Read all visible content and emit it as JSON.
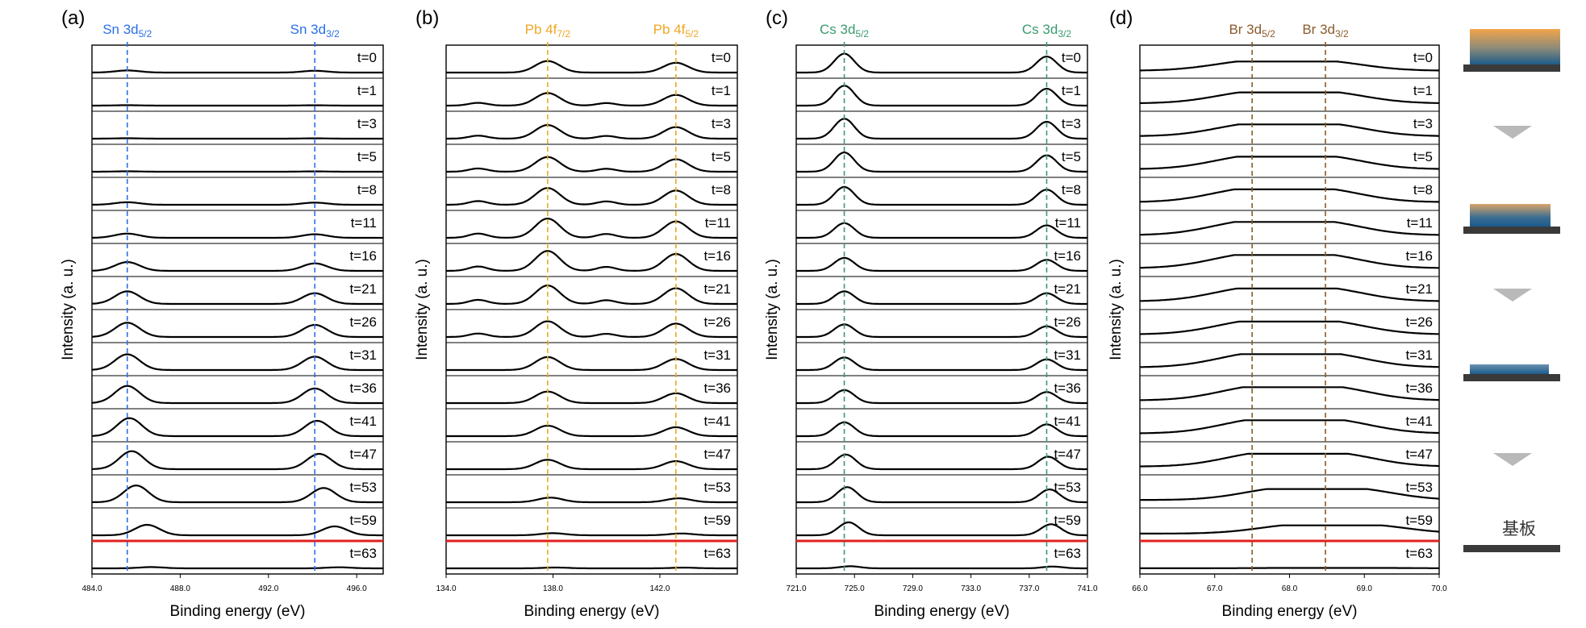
{
  "panels": [
    {
      "label": "(a)",
      "ylabel": "Intensity (a. u.)",
      "xlabel": "Binding energy (eV)",
      "peak_color": "#2b6fe8",
      "peaks": [
        {
          "name": "Sn 3d",
          "sub": "5/2",
          "position": 485.6
        },
        {
          "name": "Sn 3d",
          "sub": "3/2",
          "position": 494.1
        }
      ],
      "xlim": [
        484.0,
        497.2
      ],
      "ticks": [
        "484.0",
        "488.0",
        "492.0",
        "496.0"
      ],
      "tick_values": [
        484.0,
        488.0,
        492.0,
        496.0
      ]
    },
    {
      "label": "(b)",
      "ylabel": "Intensity (a. u.)",
      "xlabel": "Binding energy (eV)",
      "peak_color": "#f0a623",
      "peaks": [
        {
          "name": "Pb 4f",
          "sub": "7/2",
          "position": 137.8
        },
        {
          "name": "Pb 4f",
          "sub": "5/2",
          "position": 142.6
        }
      ],
      "xlim": [
        134.0,
        144.9
      ],
      "ticks": [
        "134.0",
        "138.0",
        "142.0"
      ],
      "tick_values": [
        134.0,
        138.0,
        142.0
      ]
    },
    {
      "label": "(c)",
      "ylabel": "Intensity (a. u.)",
      "xlabel": "Binding energy (eV)",
      "peak_color": "#3a9a6e",
      "peaks": [
        {
          "name": "Cs 3d",
          "sub": "5/2",
          "position": 724.3
        },
        {
          "name": "Cs 3d",
          "sub": "3/2",
          "position": 738.2
        }
      ],
      "xlim": [
        721.0,
        741.0
      ],
      "ticks": [
        "721.0",
        "725.0",
        "729.0",
        "733.0",
        "737.0",
        "741.0"
      ],
      "tick_values": [
        721.0,
        725.0,
        729.0,
        733.0,
        737.0,
        741.0
      ]
    },
    {
      "label": "(d)",
      "ylabel": "Intensity (a. u.)",
      "xlabel": "Binding energy (eV)",
      "peak_color": "#8a5a2b",
      "peaks": [
        {
          "name": "Br 3d",
          "sub": "5/2",
          "position": 67.5
        },
        {
          "name": "Br 3d",
          "sub": "3/2",
          "position": 68.48
        }
      ],
      "xlim": [
        66.0,
        70.0
      ],
      "ticks": [
        "66.0",
        "67.0",
        "68.0",
        "69.0",
        "70.0"
      ],
      "tick_values": [
        66.0,
        67.0,
        68.0,
        69.0,
        70.0
      ]
    }
  ],
  "time_labels": [
    "t=0",
    "t=1",
    "t=3",
    "t=5",
    "t=8",
    "t=11",
    "t=16",
    "t=21",
    "t=26",
    "t=31",
    "t=36",
    "t=41",
    "t=47",
    "t=53",
    "t=59",
    "t=63"
  ],
  "baseline_color": "#e02020",
  "baseline_between": [
    "t=59",
    "t=63"
  ],
  "substrate_label": "基板",
  "chart_data": [
    {
      "type": "line",
      "title": "(a)",
      "xlabel": "Binding energy (eV)",
      "ylabel": "Intensity (a. u.)",
      "xlim": [
        484.0,
        497.2
      ],
      "peak_positions": [
        485.6,
        494.1
      ],
      "series_labels": [
        "t=0",
        "t=1",
        "t=3",
        "t=5",
        "t=8",
        "t=11",
        "t=16",
        "t=21",
        "t=26",
        "t=31",
        "t=36",
        "t=41",
        "t=47",
        "t=53",
        "t=59",
        "t=63"
      ],
      "peak_intensity": [
        0.1,
        0.02,
        0.02,
        0.02,
        0.12,
        0.2,
        0.42,
        0.6,
        0.68,
        0.75,
        0.82,
        0.86,
        0.86,
        0.8,
        0.5,
        0.06
      ],
      "peak_shift": [
        0,
        0,
        0,
        0,
        0,
        0,
        0,
        0,
        0,
        0,
        0,
        0.1,
        0.2,
        0.4,
        0.9,
        1.1
      ]
    },
    {
      "type": "line",
      "title": "(b)",
      "xlabel": "Binding energy (eV)",
      "ylabel": "Intensity (a. u.)",
      "xlim": [
        134.0,
        144.9
      ],
      "peak_positions": [
        137.8,
        142.6
      ],
      "series_labels": [
        "t=0",
        "t=1",
        "t=3",
        "t=5",
        "t=8",
        "t=11",
        "t=16",
        "t=21",
        "t=26",
        "t=31",
        "t=36",
        "t=41",
        "t=47",
        "t=53",
        "t=59",
        "t=63"
      ],
      "peak_intensity": [
        0.55,
        0.6,
        0.65,
        0.7,
        0.8,
        0.92,
        0.95,
        0.88,
        0.75,
        0.62,
        0.55,
        0.5,
        0.45,
        0.22,
        0.1,
        0.04
      ],
      "peak_shift": [
        0,
        0,
        0,
        0,
        0,
        0,
        0,
        0,
        0,
        0,
        0,
        0,
        0,
        0.1,
        0.2,
        0.3
      ]
    },
    {
      "type": "line",
      "title": "(c)",
      "xlabel": "Binding energy (eV)",
      "ylabel": "Intensity (a. u.)",
      "xlim": [
        721.0,
        741.0
      ],
      "peak_positions": [
        724.3,
        738.2
      ],
      "series_labels": [
        "t=0",
        "t=1",
        "t=3",
        "t=5",
        "t=8",
        "t=11",
        "t=16",
        "t=21",
        "t=26",
        "t=31",
        "t=36",
        "t=41",
        "t=47",
        "t=53",
        "t=59",
        "t=63"
      ],
      "peak_intensity": [
        0.9,
        0.95,
        0.95,
        0.92,
        0.85,
        0.7,
        0.62,
        0.6,
        0.6,
        0.6,
        0.62,
        0.66,
        0.7,
        0.72,
        0.62,
        0.1
      ],
      "peak_shift": [
        0,
        0,
        0,
        0,
        0,
        0,
        0,
        0,
        0,
        0,
        0,
        0,
        0.1,
        0.2,
        0.3,
        0.4
      ]
    },
    {
      "type": "line",
      "title": "(d)",
      "xlabel": "Binding energy (eV)",
      "ylabel": "Intensity (a. u.)",
      "xlim": [
        66.0,
        70.0
      ],
      "peak_positions": [
        67.5,
        68.48
      ],
      "series_labels": [
        "t=0",
        "t=1",
        "t=3",
        "t=5",
        "t=8",
        "t=11",
        "t=16",
        "t=21",
        "t=26",
        "t=31",
        "t=36",
        "t=41",
        "t=47",
        "t=53",
        "t=59",
        "t=63"
      ],
      "peak_intensity": [
        0.5,
        0.6,
        0.65,
        0.68,
        0.7,
        0.72,
        0.72,
        0.7,
        0.7,
        0.72,
        0.72,
        0.72,
        0.7,
        0.6,
        0.45,
        0.02
      ],
      "peak_shift": [
        0,
        0.03,
        0.03,
        0,
        -0.03,
        -0.03,
        -0.03,
        0,
        0.03,
        0.05,
        0.08,
        0.1,
        0.15,
        0.4,
        0.6,
        0.6
      ]
    }
  ],
  "side_stacks": [
    {
      "film": "gradient-orange-blue"
    },
    {
      "film": "gradient-tan-blue"
    },
    {
      "film": "gradient-blue"
    }
  ]
}
